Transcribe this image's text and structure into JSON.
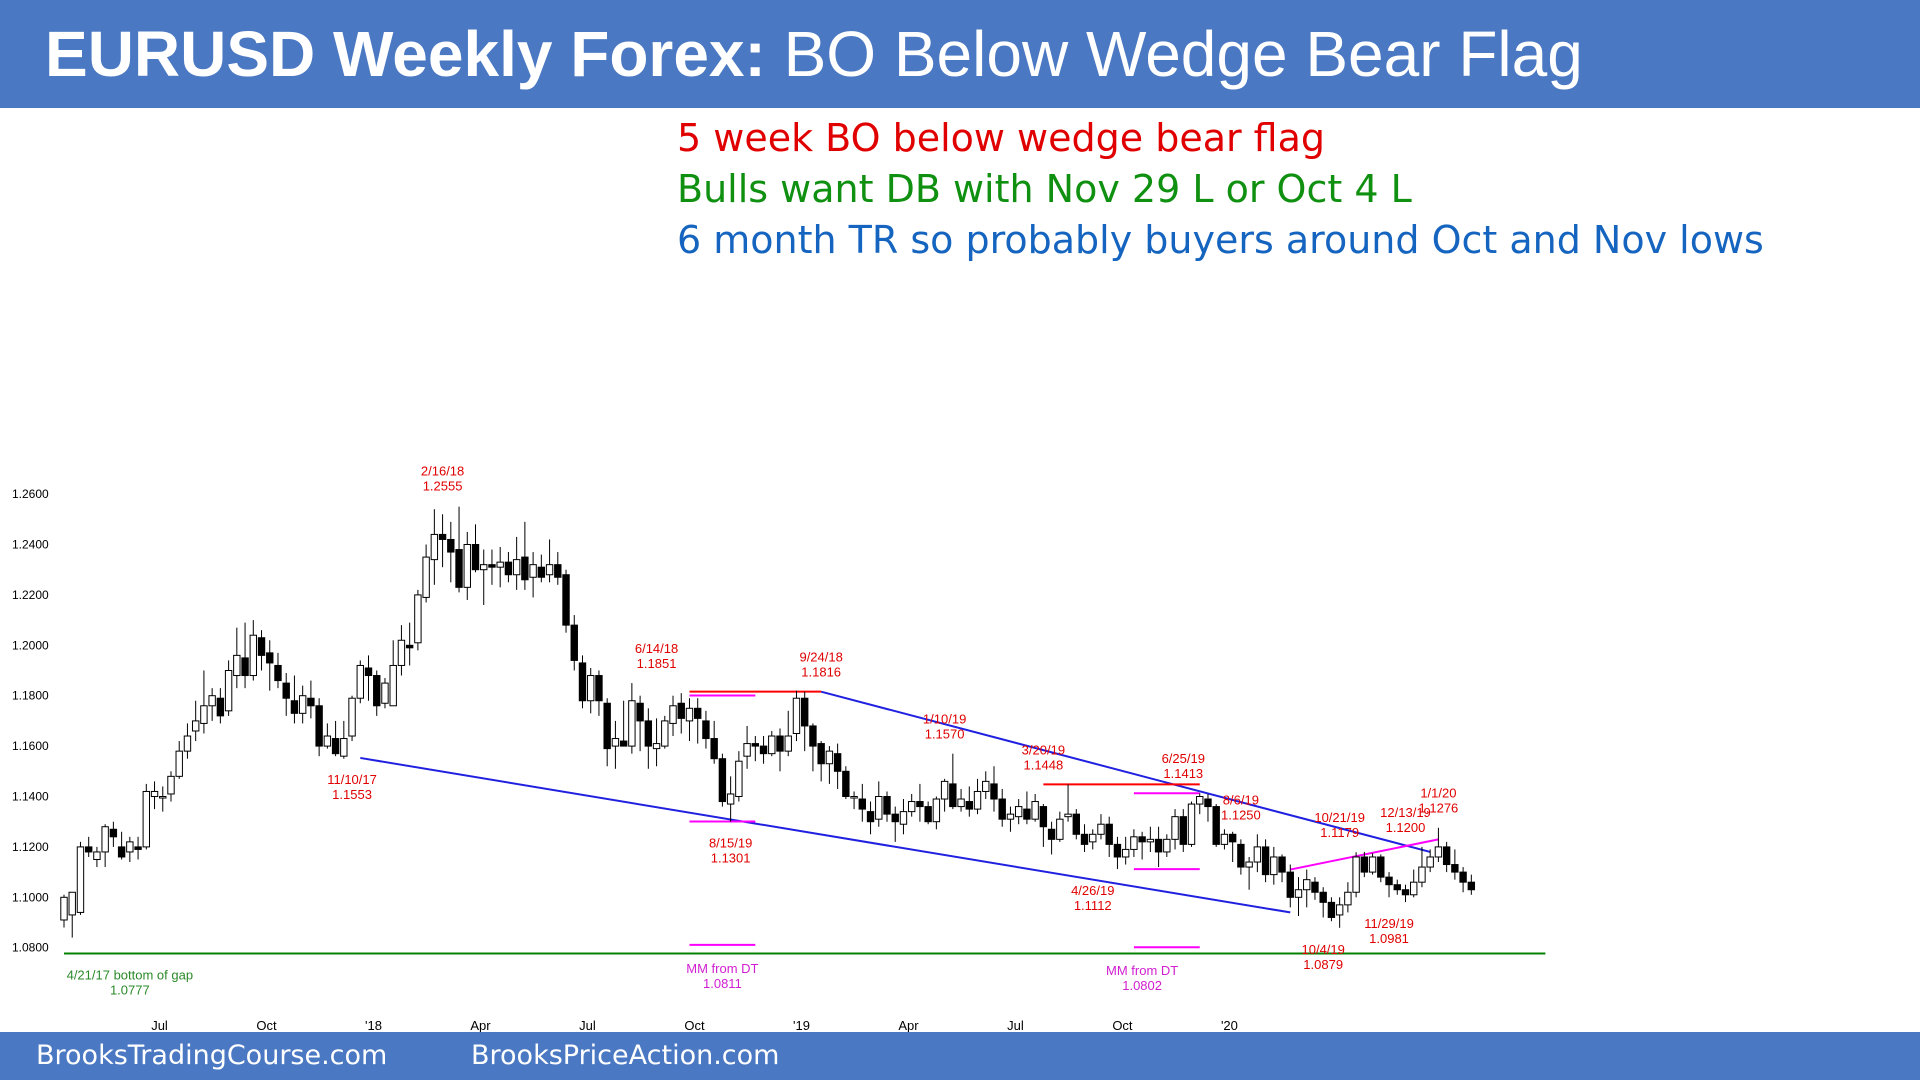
{
  "header": {
    "title_bold": "EURUSD Weekly Forex:",
    "title_rest": " BO Below Wedge Bear Flag"
  },
  "notes": [
    {
      "text": "5 week BO below wedge bear flag",
      "color": "#e00000"
    },
    {
      "text": "Bulls want DB with Nov 29 L or Oct 4 L",
      "color": "#109010"
    },
    {
      "text": "6 month TR so probably buyers around Oct and Nov lows",
      "color": "#1565c0"
    }
  ],
  "footer": {
    "left": "BrooksTradingCourse.com",
    "right": "BrooksPriceAction.com"
  },
  "colors": {
    "header_bg": "#4a78c2",
    "bull_candle": "#ffffff",
    "bear_candle": "#000000",
    "trendline": "#2020e0",
    "resistance": "#ff0000",
    "measured_move": "#ff00ff",
    "support": "#008000",
    "label_red": "#e00000",
    "label_green": "#2a8a2a",
    "label_magenta": "#d020d0"
  },
  "chart_data": {
    "type": "candlestick",
    "title": "EURUSD Weekly Forex: BO Below Wedge Bear Flag",
    "ylim": [
      1.075,
      1.262
    ],
    "yticks": [
      "1.0800",
      "1.1000",
      "1.1200",
      "1.1400",
      "1.1600",
      "1.1800",
      "1.2000",
      "1.2200",
      "1.2400",
      "1.2600"
    ],
    "xticks": [
      {
        "label": "Jul",
        "i": 11
      },
      {
        "label": "Oct",
        "i": 24
      },
      {
        "label": "'18",
        "i": 37
      },
      {
        "label": "Apr",
        "i": 50
      },
      {
        "label": "Jul",
        "i": 63
      },
      {
        "label": "Oct",
        "i": 76
      },
      {
        "label": "'19",
        "i": 89
      },
      {
        "label": "Apr",
        "i": 102
      },
      {
        "label": "Jul",
        "i": 115
      },
      {
        "label": "Oct",
        "i": 128
      },
      {
        "label": "'20",
        "i": 141
      }
    ],
    "candles": [
      [
        1.091,
        1.1,
        1.101,
        1.088
      ],
      [
        1.093,
        1.102,
        1.102,
        1.084
      ],
      [
        1.094,
        1.12,
        1.122,
        1.093
      ],
      [
        1.12,
        1.118,
        1.124,
        1.116
      ],
      [
        1.115,
        1.118,
        1.12,
        1.112
      ],
      [
        1.118,
        1.128,
        1.129,
        1.112
      ],
      [
        1.127,
        1.124,
        1.13,
        1.12
      ],
      [
        1.12,
        1.116,
        1.126,
        1.115
      ],
      [
        1.118,
        1.122,
        1.124,
        1.114
      ],
      [
        1.12,
        1.119,
        1.124,
        1.115
      ],
      [
        1.12,
        1.142,
        1.145,
        1.119
      ],
      [
        1.14,
        1.142,
        1.146,
        1.135
      ],
      [
        1.14,
        1.14,
        1.144,
        1.134
      ],
      [
        1.141,
        1.148,
        1.15,
        1.138
      ],
      [
        1.148,
        1.158,
        1.162,
        1.147
      ],
      [
        1.158,
        1.164,
        1.169,
        1.155
      ],
      [
        1.166,
        1.17,
        1.178,
        1.162
      ],
      [
        1.169,
        1.176,
        1.19,
        1.165
      ],
      [
        1.176,
        1.18,
        1.183,
        1.17
      ],
      [
        1.179,
        1.172,
        1.183,
        1.169
      ],
      [
        1.174,
        1.19,
        1.194,
        1.172
      ],
      [
        1.188,
        1.196,
        1.207,
        1.183
      ],
      [
        1.195,
        1.188,
        1.209,
        1.183
      ],
      [
        1.188,
        1.204,
        1.21,
        1.186
      ],
      [
        1.203,
        1.196,
        1.206,
        1.19
      ],
      [
        1.197,
        1.193,
        1.202,
        1.182
      ],
      [
        1.192,
        1.186,
        1.197,
        1.183
      ],
      [
        1.185,
        1.179,
        1.189,
        1.172
      ],
      [
        1.178,
        1.173,
        1.188,
        1.169
      ],
      [
        1.173,
        1.18,
        1.184,
        1.169
      ],
      [
        1.179,
        1.176,
        1.186,
        1.171
      ],
      [
        1.176,
        1.16,
        1.179,
        1.156
      ],
      [
        1.16,
        1.164,
        1.169,
        1.159
      ],
      [
        1.163,
        1.157,
        1.17,
        1.156
      ],
      [
        1.156,
        1.163,
        1.17,
        1.155
      ],
      [
        1.164,
        1.179,
        1.18,
        1.162
      ],
      [
        1.179,
        1.192,
        1.194,
        1.177
      ],
      [
        1.191,
        1.188,
        1.196,
        1.178
      ],
      [
        1.188,
        1.176,
        1.19,
        1.172
      ],
      [
        1.177,
        1.185,
        1.187,
        1.175
      ],
      [
        1.176,
        1.192,
        1.202,
        1.176
      ],
      [
        1.192,
        1.202,
        1.208,
        1.188
      ],
      [
        1.2,
        1.199,
        1.209,
        1.192
      ],
      [
        1.201,
        1.22,
        1.222,
        1.198
      ],
      [
        1.219,
        1.235,
        1.24,
        1.217
      ],
      [
        1.234,
        1.244,
        1.254,
        1.224
      ],
      [
        1.244,
        1.242,
        1.252,
        1.231
      ],
      [
        1.242,
        1.237,
        1.249,
        1.225
      ],
      [
        1.238,
        1.223,
        1.255,
        1.221
      ],
      [
        1.223,
        1.24,
        1.245,
        1.218
      ],
      [
        1.24,
        1.23,
        1.248,
        1.229
      ],
      [
        1.23,
        1.232,
        1.238,
        1.216
      ],
      [
        1.232,
        1.231,
        1.238,
        1.224
      ],
      [
        1.231,
        1.233,
        1.239,
        1.223
      ],
      [
        1.233,
        1.228,
        1.237,
        1.225
      ],
      [
        1.228,
        1.234,
        1.243,
        1.222
      ],
      [
        1.235,
        1.226,
        1.249,
        1.222
      ],
      [
        1.227,
        1.232,
        1.237,
        1.219
      ],
      [
        1.231,
        1.227,
        1.236,
        1.225
      ],
      [
        1.228,
        1.232,
        1.242,
        1.225
      ],
      [
        1.232,
        1.227,
        1.237,
        1.224
      ],
      [
        1.228,
        1.208,
        1.23,
        1.205
      ],
      [
        1.208,
        1.194,
        1.212,
        1.19
      ],
      [
        1.193,
        1.178,
        1.196,
        1.175
      ],
      [
        1.178,
        1.188,
        1.191,
        1.173
      ],
      [
        1.188,
        1.178,
        1.19,
        1.172
      ],
      [
        1.177,
        1.159,
        1.179,
        1.152
      ],
      [
        1.16,
        1.163,
        1.17,
        1.151
      ],
      [
        1.162,
        1.16,
        1.178,
        1.16
      ],
      [
        1.16,
        1.178,
        1.185,
        1.157
      ],
      [
        1.177,
        1.17,
        1.18,
        1.158
      ],
      [
        1.17,
        1.16,
        1.175,
        1.151
      ],
      [
        1.159,
        1.161,
        1.171,
        1.152
      ],
      [
        1.16,
        1.17,
        1.172,
        1.159
      ],
      [
        1.169,
        1.176,
        1.18,
        1.164
      ],
      [
        1.177,
        1.171,
        1.181,
        1.165
      ],
      [
        1.17,
        1.175,
        1.179,
        1.162
      ],
      [
        1.175,
        1.171,
        1.179,
        1.161
      ],
      [
        1.17,
        1.163,
        1.174,
        1.159
      ],
      [
        1.163,
        1.155,
        1.17,
        1.153
      ],
      [
        1.155,
        1.138,
        1.157,
        1.136
      ],
      [
        1.137,
        1.141,
        1.148,
        1.13
      ],
      [
        1.14,
        1.154,
        1.158,
        1.138
      ],
      [
        1.156,
        1.161,
        1.168,
        1.151
      ],
      [
        1.161,
        1.16,
        1.164,
        1.154
      ],
      [
        1.16,
        1.157,
        1.164,
        1.153
      ],
      [
        1.157,
        1.164,
        1.166,
        1.156
      ],
      [
        1.164,
        1.158,
        1.167,
        1.15
      ],
      [
        1.158,
        1.164,
        1.174,
        1.156
      ],
      [
        1.165,
        1.179,
        1.182,
        1.162
      ],
      [
        1.179,
        1.168,
        1.1816,
        1.158
      ],
      [
        1.168,
        1.16,
        1.169,
        1.15
      ],
      [
        1.161,
        1.153,
        1.162,
        1.146
      ],
      [
        1.153,
        1.158,
        1.16,
        1.145
      ],
      [
        1.157,
        1.15,
        1.161,
        1.143
      ],
      [
        1.15,
        1.14,
        1.152,
        1.139
      ],
      [
        1.14,
        1.14,
        1.142,
        1.135
      ],
      [
        1.139,
        1.135,
        1.145,
        1.13
      ],
      [
        1.134,
        1.13,
        1.138,
        1.125
      ],
      [
        1.131,
        1.14,
        1.146,
        1.128
      ],
      [
        1.14,
        1.133,
        1.142,
        1.13
      ],
      [
        1.133,
        1.13,
        1.136,
        1.122
      ],
      [
        1.129,
        1.134,
        1.139,
        1.125
      ],
      [
        1.134,
        1.138,
        1.141,
        1.132
      ],
      [
        1.138,
        1.136,
        1.145,
        1.13
      ],
      [
        1.136,
        1.13,
        1.138,
        1.129
      ],
      [
        1.13,
        1.139,
        1.14,
        1.127
      ],
      [
        1.139,
        1.146,
        1.147,
        1.134
      ],
      [
        1.145,
        1.136,
        1.157,
        1.135
      ],
      [
        1.136,
        1.139,
        1.143,
        1.134
      ],
      [
        1.138,
        1.135,
        1.144,
        1.132
      ],
      [
        1.135,
        1.142,
        1.147,
        1.133
      ],
      [
        1.142,
        1.146,
        1.15,
        1.139
      ],
      [
        1.145,
        1.139,
        1.152,
        1.134
      ],
      [
        1.139,
        1.131,
        1.143,
        1.128
      ],
      [
        1.131,
        1.133,
        1.136,
        1.126
      ],
      [
        1.132,
        1.136,
        1.139,
        1.129
      ],
      [
        1.135,
        1.131,
        1.142,
        1.129
      ],
      [
        1.131,
        1.138,
        1.141,
        1.13
      ],
      [
        1.136,
        1.128,
        1.137,
        1.12
      ],
      [
        1.127,
        1.123,
        1.13,
        1.117
      ],
      [
        1.123,
        1.131,
        1.134,
        1.122
      ],
      [
        1.132,
        1.133,
        1.1448,
        1.13
      ],
      [
        1.133,
        1.125,
        1.135,
        1.123
      ],
      [
        1.125,
        1.121,
        1.129,
        1.118
      ],
      [
        1.122,
        1.125,
        1.127,
        1.119
      ],
      [
        1.125,
        1.129,
        1.133,
        1.123
      ],
      [
        1.129,
        1.121,
        1.132,
        1.116
      ],
      [
        1.121,
        1.116,
        1.124,
        1.1112
      ],
      [
        1.116,
        1.119,
        1.124,
        1.113
      ],
      [
        1.119,
        1.124,
        1.127,
        1.116
      ],
      [
        1.124,
        1.122,
        1.126,
        1.115
      ],
      [
        1.122,
        1.123,
        1.128,
        1.118
      ],
      [
        1.123,
        1.118,
        1.128,
        1.112
      ],
      [
        1.118,
        1.123,
        1.125,
        1.116
      ],
      [
        1.123,
        1.132,
        1.135,
        1.119
      ],
      [
        1.132,
        1.121,
        1.135,
        1.118
      ],
      [
        1.121,
        1.137,
        1.138,
        1.12
      ],
      [
        1.137,
        1.14,
        1.1413,
        1.133
      ],
      [
        1.139,
        1.136,
        1.141,
        1.13
      ],
      [
        1.136,
        1.121,
        1.137,
        1.12
      ],
      [
        1.121,
        1.125,
        1.127,
        1.119
      ],
      [
        1.125,
        1.122,
        1.126,
        1.114
      ],
      [
        1.121,
        1.112,
        1.123,
        1.109
      ],
      [
        1.112,
        1.114,
        1.116,
        1.103
      ],
      [
        1.114,
        1.12,
        1.125,
        1.11
      ],
      [
        1.12,
        1.109,
        1.123,
        1.106
      ],
      [
        1.109,
        1.116,
        1.12,
        1.105
      ],
      [
        1.116,
        1.11,
        1.117,
        1.106
      ],
      [
        1.11,
        1.1,
        1.113,
        1.096
      ],
      [
        1.1,
        1.103,
        1.108,
        1.0926
      ],
      [
        1.103,
        1.107,
        1.111,
        1.096
      ],
      [
        1.106,
        1.102,
        1.108,
        1.099
      ],
      [
        1.102,
        1.098,
        1.104,
        1.092
      ],
      [
        1.098,
        1.092,
        1.1,
        1.0905
      ],
      [
        1.093,
        1.097,
        1.1,
        1.0879
      ],
      [
        1.097,
        1.102,
        1.106,
        1.094
      ],
      [
        1.102,
        1.116,
        1.1179,
        1.1
      ],
      [
        1.116,
        1.11,
        1.118,
        1.108
      ],
      [
        1.11,
        1.116,
        1.1175,
        1.109
      ],
      [
        1.116,
        1.108,
        1.117,
        1.106
      ],
      [
        1.108,
        1.105,
        1.11,
        1.1
      ],
      [
        1.105,
        1.103,
        1.107,
        1.101
      ],
      [
        1.103,
        1.101,
        1.105,
        1.0981
      ],
      [
        1.101,
        1.106,
        1.111,
        1.1
      ],
      [
        1.106,
        1.112,
        1.12,
        1.104
      ],
      [
        1.112,
        1.116,
        1.119,
        1.11
      ],
      [
        1.116,
        1.12,
        1.1276,
        1.114
      ],
      [
        1.12,
        1.113,
        1.122,
        1.11
      ],
      [
        1.113,
        1.11,
        1.119,
        1.107
      ],
      [
        1.11,
        1.106,
        1.112,
        1.102
      ],
      [
        1.106,
        1.103,
        1.109,
        1.101
      ]
    ],
    "annotations": [
      {
        "label": "2/16/18",
        "price": "1.2555",
        "i": 46,
        "side": "above",
        "val": 1.2555,
        "color": "red"
      },
      {
        "label": "6/14/18",
        "price": "1.1851",
        "i": 72,
        "side": "above",
        "val": 1.1851,
        "color": "red"
      },
      {
        "label": "9/24/18",
        "price": "1.1816",
        "i": 92,
        "side": "above",
        "val": 1.1816,
        "color": "red"
      },
      {
        "label": "1/10/19",
        "price": "1.1570",
        "i": 107,
        "side": "above",
        "val": 1.157,
        "color": "red"
      },
      {
        "label": "3/20/19",
        "price": "1.1448",
        "i": 119,
        "side": "above",
        "val": 1.1448,
        "color": "red"
      },
      {
        "label": "6/25/19",
        "price": "1.1413",
        "i": 136,
        "side": "above",
        "val": 1.1413,
        "color": "red"
      },
      {
        "label": "8/6/19",
        "price": "1.1250",
        "i": 143,
        "side": "above",
        "val": 1.125,
        "color": "red"
      },
      {
        "label": "10/21/19",
        "price": "1.1179",
        "i": 155,
        "side": "above",
        "val": 1.1179,
        "color": "red"
      },
      {
        "label": "12/13/19",
        "price": "1.1200",
        "i": 163,
        "side": "above",
        "val": 1.12,
        "color": "red"
      },
      {
        "label": "1/1/20",
        "price": "1.1276",
        "i": 167,
        "side": "above",
        "val": 1.1276,
        "color": "red"
      },
      {
        "label": "11/10/17",
        "price": "1.1553",
        "i": 35,
        "side": "below",
        "val": 1.1553,
        "color": "red"
      },
      {
        "label": "8/15/19",
        "price": "1.1301",
        "i": 81,
        "side": "below",
        "val": 1.1301,
        "color": "red"
      },
      {
        "label": "4/26/19",
        "price": "1.1112",
        "i": 125,
        "side": "below",
        "val": 1.1112,
        "color": "red"
      },
      {
        "label": "11/29/19",
        "price": "1.0981",
        "i": 161,
        "side": "below",
        "val": 1.0981,
        "color": "red"
      },
      {
        "label": "10/4/19",
        "price": "1.0879",
        "i": 153,
        "side": "below",
        "val": 1.0879,
        "color": "red"
      },
      {
        "label": "4/21/17 bottom of gap",
        "price": "1.0777",
        "i": 8,
        "side": "below",
        "val": 1.0777,
        "color": "green"
      },
      {
        "label": "MM from DT",
        "price": "1.0811",
        "i": 80,
        "side": "below",
        "val": 1.0811,
        "color": "magenta"
      },
      {
        "label": "MM from DT",
        "price": "1.0802",
        "i": 131,
        "side": "below",
        "val": 1.0802,
        "color": "magenta"
      }
    ],
    "lines": [
      {
        "kind": "trendline",
        "from": [
          36,
          1.1553
        ],
        "to": [
          149,
          1.094
        ]
      },
      {
        "kind": "trendline",
        "from": [
          92,
          1.1816
        ],
        "to": [
          166,
          1.118
        ]
      },
      {
        "kind": "resistance",
        "from": [
          76,
          1.1816
        ],
        "to": [
          92,
          1.1816
        ]
      },
      {
        "kind": "resistance",
        "from": [
          119,
          1.1448
        ],
        "to": [
          138,
          1.1448
        ]
      },
      {
        "kind": "measured_move",
        "from": [
          76,
          1.1801
        ],
        "to": [
          84,
          1.1801
        ]
      },
      {
        "kind": "measured_move",
        "from": [
          76,
          1.1301
        ],
        "to": [
          84,
          1.1301
        ]
      },
      {
        "kind": "measured_move",
        "from": [
          76,
          1.0811
        ],
        "to": [
          84,
          1.0811
        ]
      },
      {
        "kind": "measured_move",
        "from": [
          130,
          1.1413
        ],
        "to": [
          138,
          1.1413
        ]
      },
      {
        "kind": "measured_move",
        "from": [
          130,
          1.1112
        ],
        "to": [
          138,
          1.1112
        ]
      },
      {
        "kind": "measured_move",
        "from": [
          130,
          1.0802
        ],
        "to": [
          138,
          1.0802
        ]
      },
      {
        "kind": "measured_move",
        "from": [
          149,
          1.111
        ],
        "to": [
          167,
          1.123
        ]
      },
      {
        "kind": "support",
        "from": [
          0,
          1.0777
        ],
        "to": [
          180,
          1.0777
        ]
      }
    ]
  }
}
